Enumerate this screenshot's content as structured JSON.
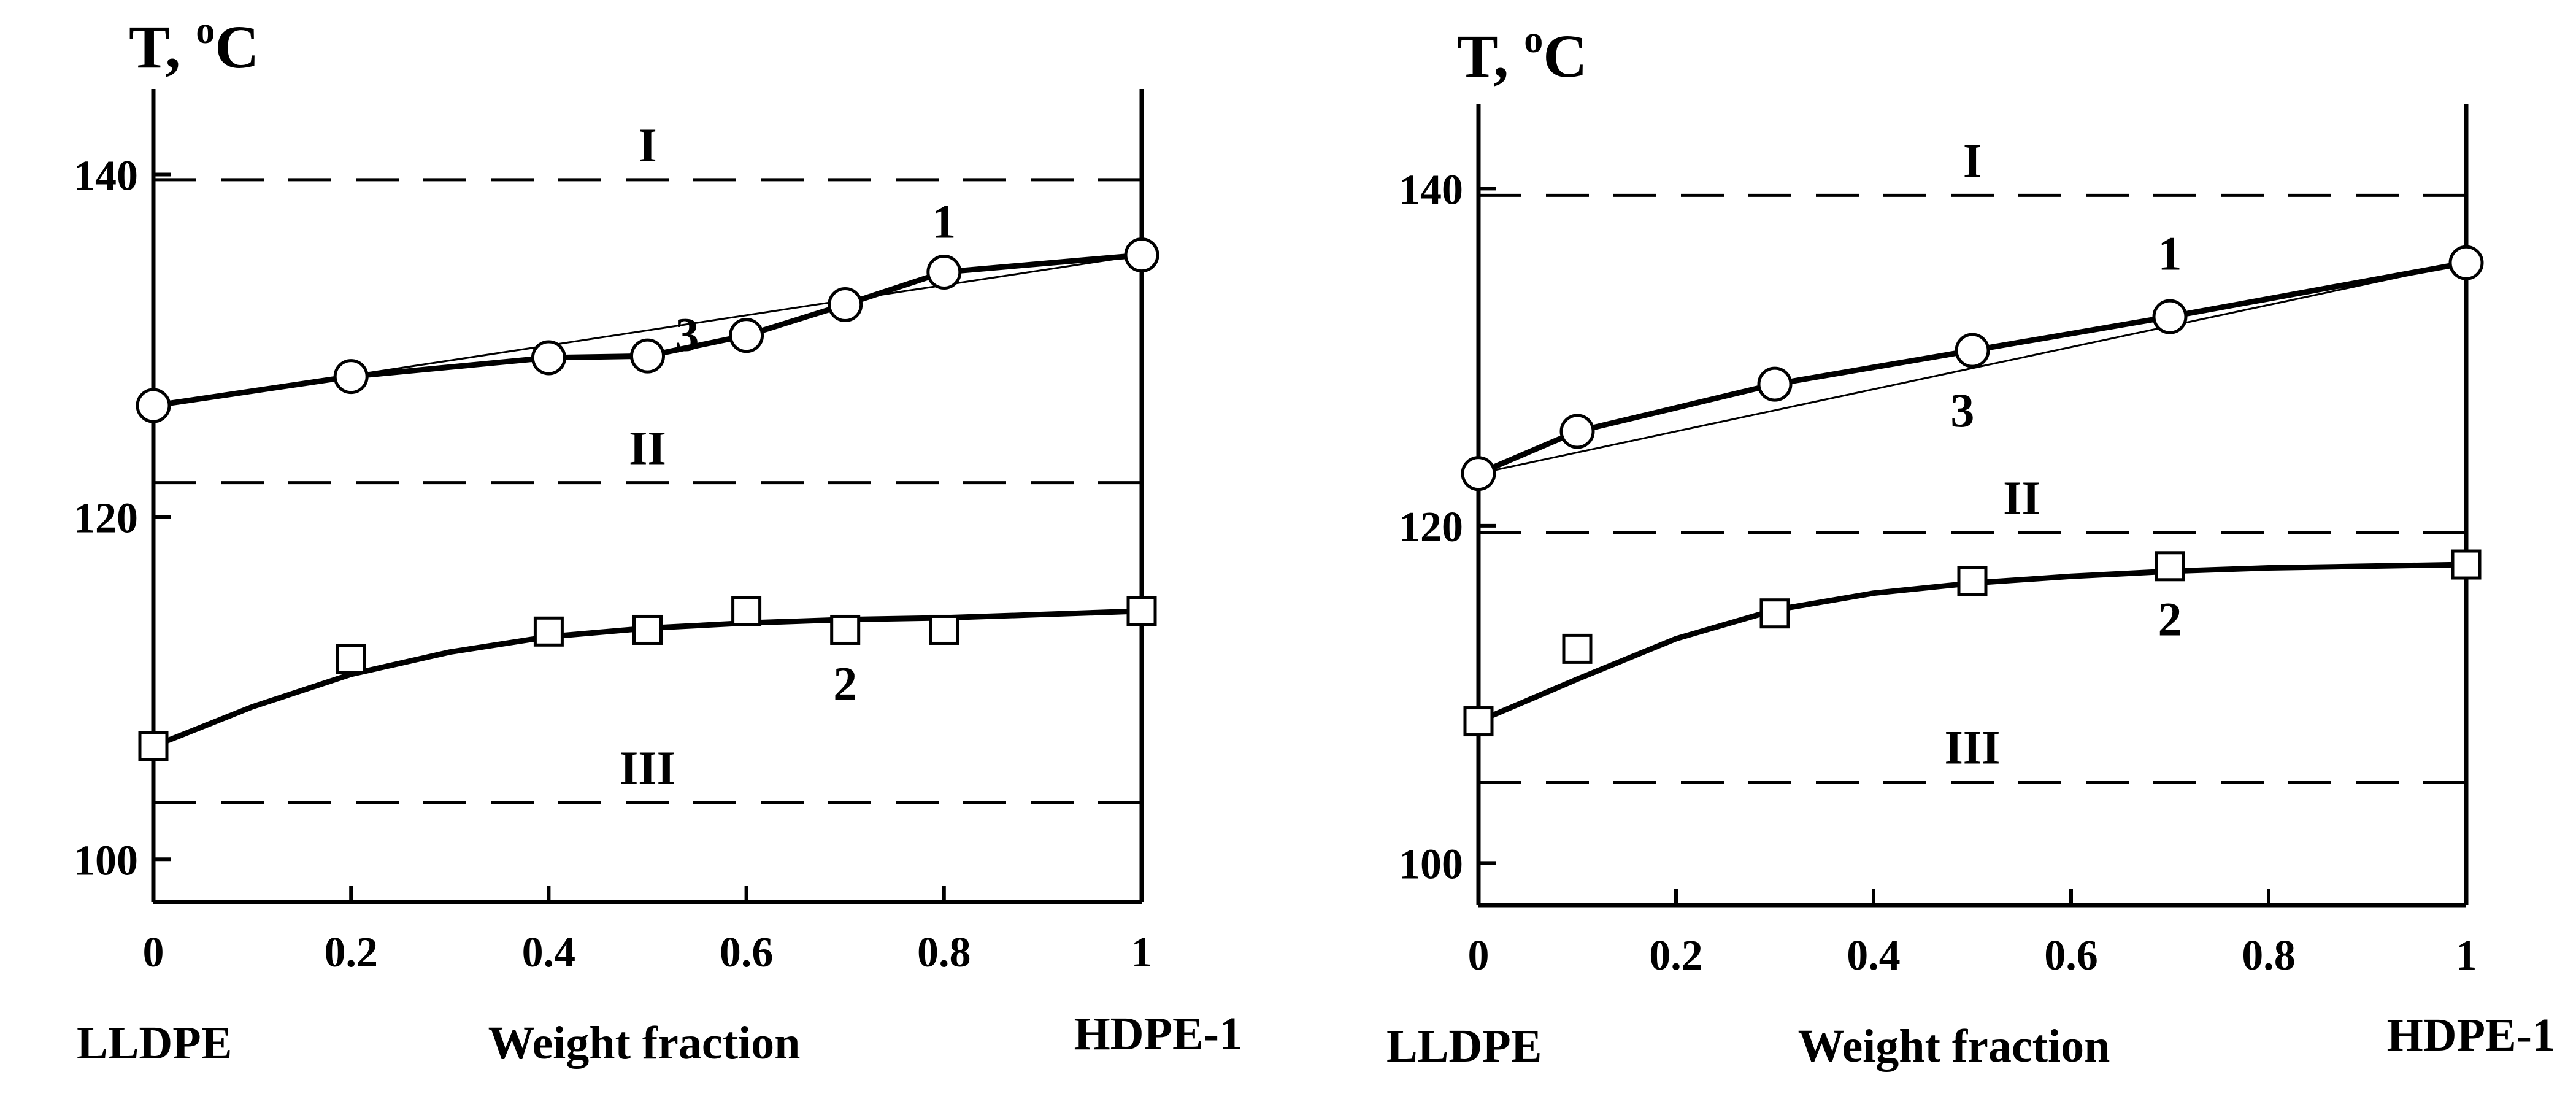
{
  "chart_data": [
    {
      "type": "line",
      "title": "",
      "ylabel_base": "T, ",
      "ylabel_degree": "o",
      "ylabel_unit": "C",
      "xlabel": "Weight fraction",
      "left_end_label": "LLDPE",
      "right_end_label": "HDPE-1",
      "xlim": [
        0,
        1
      ],
      "ylim": [
        97.5,
        145
      ],
      "x_ticks": [
        0,
        0.2,
        0.4,
        0.6,
        0.8,
        1
      ],
      "x_tick_labels": [
        "0",
        "0.2",
        "0.4",
        "0.6",
        "0.8",
        "1"
      ],
      "y_ticks": [
        100,
        120,
        140
      ],
      "y_tick_labels": [
        "100",
        "120",
        "140"
      ],
      "reference_lines": [
        {
          "label": "I",
          "y": 139.7,
          "label_x": 0.5
        },
        {
          "label": "II",
          "y": 122.0,
          "label_x": 0.5
        },
        {
          "label": "III",
          "y": 103.3,
          "label_x": 0.5
        }
      ],
      "series": [
        {
          "name": "1",
          "label_at": [
            0.8,
            137.2
          ],
          "marker": "circle",
          "style": "thick",
          "x": [
            0,
            0.2,
            0.4,
            0.5,
            0.6,
            0.7,
            0.8,
            1
          ],
          "y": [
            126.5,
            128.2,
            129.3,
            129.4,
            130.6,
            132.4,
            134.3,
            135.3
          ]
        },
        {
          "name": "2",
          "label_at": [
            0.7,
            110.2
          ],
          "marker": "square",
          "style": "thick",
          "x": [
            0,
            0.2,
            0.4,
            0.5,
            0.6,
            0.7,
            0.8,
            1
          ],
          "y": [
            106.6,
            111.7,
            113.3,
            113.4,
            114.5,
            113.4,
            113.4,
            114.5
          ],
          "fit_x": [
            0,
            0.1,
            0.2,
            0.3,
            0.4,
            0.5,
            0.6,
            0.7,
            0.8,
            0.9,
            1
          ],
          "fit_y": [
            106.6,
            108.9,
            110.8,
            112.1,
            113.0,
            113.5,
            113.8,
            114.0,
            114.1,
            114.3,
            114.5
          ]
        },
        {
          "name": "3",
          "label_at": [
            0.54,
            130.6
          ],
          "marker": "none",
          "style": "thin",
          "x": [
            0,
            1
          ],
          "y": [
            126.5,
            135.3
          ]
        }
      ]
    },
    {
      "type": "line",
      "title": "",
      "ylabel_base": "T, ",
      "ylabel_degree": "o",
      "ylabel_unit": "C",
      "xlabel": "Weight fraction",
      "left_end_label": "LLDPE",
      "right_end_label": "HDPE-1",
      "xlim": [
        0,
        1
      ],
      "ylim": [
        97.5,
        145
      ],
      "x_ticks": [
        0,
        0.2,
        0.4,
        0.6,
        0.8,
        1
      ],
      "x_tick_labels": [
        "0",
        "0.2",
        "0.4",
        "0.6",
        "0.8",
        "1"
      ],
      "y_ticks": [
        100,
        120,
        140
      ],
      "y_tick_labels": [
        "100",
        "120",
        "140"
      ],
      "reference_lines": [
        {
          "label": "I",
          "y": 139.6,
          "label_x": 0.5
        },
        {
          "label": "II",
          "y": 119.6,
          "label_x": 0.55
        },
        {
          "label": "III",
          "y": 104.8,
          "label_x": 0.5
        }
      ],
      "series": [
        {
          "name": "1",
          "label_at": [
            0.7,
            136.1
          ],
          "marker": "circle",
          "style": "thick",
          "x": [
            0,
            0.1,
            0.3,
            0.5,
            0.7,
            1
          ],
          "y": [
            123.1,
            125.6,
            128.4,
            130.4,
            132.4,
            135.6
          ]
        },
        {
          "name": "2",
          "label_at": [
            0.7,
            114.4
          ],
          "marker": "square",
          "style": "thick",
          "x": [
            0,
            0.1,
            0.3,
            0.5,
            0.7,
            1
          ],
          "y": [
            108.4,
            112.7,
            114.8,
            116.7,
            117.6,
            117.7
          ],
          "fit_x": [
            0,
            0.1,
            0.2,
            0.3,
            0.4,
            0.5,
            0.6,
            0.7,
            0.8,
            0.9,
            1
          ],
          "fit_y": [
            108.4,
            110.9,
            113.3,
            115.0,
            116.0,
            116.6,
            117.0,
            117.3,
            117.5,
            117.6,
            117.7
          ]
        },
        {
          "name": "3",
          "label_at": [
            0.49,
            126.8
          ],
          "marker": "none",
          "style": "thin",
          "x": [
            0,
            1
          ],
          "y": [
            123.1,
            135.6
          ]
        }
      ]
    }
  ]
}
